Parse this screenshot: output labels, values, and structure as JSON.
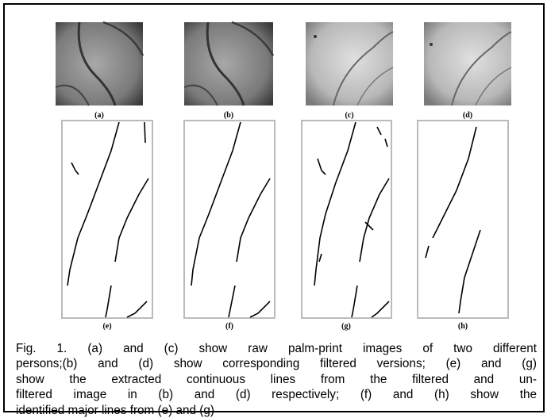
{
  "figure": {
    "top_labels": [
      "(a)",
      "(b)",
      "(c)",
      "(d)"
    ],
    "bottom_labels": [
      "(e)",
      "(f)",
      "(g)",
      "(h)"
    ]
  },
  "caption": {
    "lines": [
      "Fig. 1. (a) and (c) show raw palm-print images of two different",
      "persons;(b) and (d) show corresponding filtered versions; (e) and (g)",
      "show the extracted continuous lines from the filtered and un-",
      "filtered image in (b) and (d) respectively; (f) and (h) show the",
      "identified major lines from (e) and (g)"
    ]
  }
}
